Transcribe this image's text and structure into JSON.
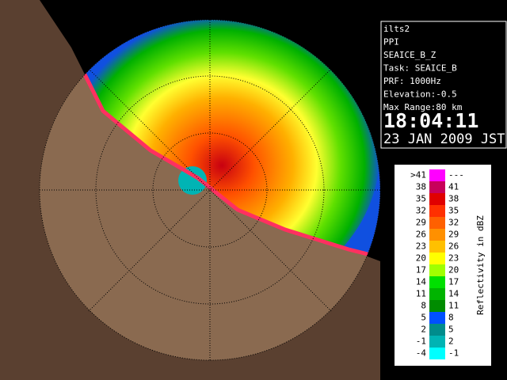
{
  "info": {
    "lines": [
      "ilts2",
      "PPI",
      "SEAICE_B_Z",
      "Task: SEAICE_B",
      "PRF: 1000Hz",
      "Elevation:-0.5",
      "Max Range:80 km"
    ],
    "time": "18:04:11",
    "date": "23 JAN 2009 JST"
  },
  "legend": {
    "title": "Reflectivity in dBZ",
    "rows": [
      {
        "low": ">41",
        "high": "---",
        "color": "#ff00ff"
      },
      {
        "low": "38",
        "high": "41",
        "color": "#c8005a"
      },
      {
        "low": "35",
        "high": "38",
        "color": "#e00000"
      },
      {
        "low": "32",
        "high": "35",
        "color": "#ff3000"
      },
      {
        "low": "29",
        "high": "32",
        "color": "#ff6000"
      },
      {
        "low": "26",
        "high": "29",
        "color": "#ff9000"
      },
      {
        "low": "23",
        "high": "26",
        "color": "#ffc000"
      },
      {
        "low": "20",
        "high": "23",
        "color": "#ffff00"
      },
      {
        "low": "17",
        "high": "20",
        "color": "#a0ff00"
      },
      {
        "low": "14",
        "high": "17",
        "color": "#00e000"
      },
      {
        "low": "11",
        "high": "14",
        "color": "#00b400"
      },
      {
        "low": "8",
        "high": "11",
        "color": "#008c00"
      },
      {
        "low": "5",
        "high": "8",
        "color": "#0050ff"
      },
      {
        "low": "2",
        "high": "5",
        "color": "#008c8c"
      },
      {
        "low": "-1",
        "high": "2",
        "color": "#00b4b4"
      },
      {
        "low": "-4",
        "high": "-1",
        "color": "#00ffff"
      }
    ]
  }
}
